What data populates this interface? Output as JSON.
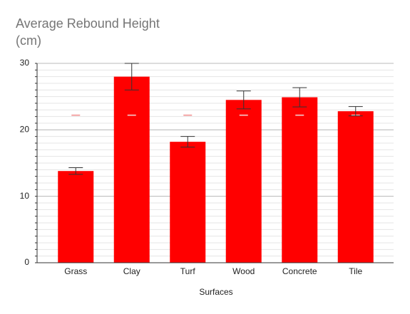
{
  "chart_data": {
    "type": "bar",
    "title": "Average Rebound Height",
    "title_unit": "(cm)",
    "x_label": "Surfaces",
    "categories": [
      "Grass",
      "Clay",
      "Turf",
      "Wood",
      "Concrete",
      "Tile"
    ],
    "values": [
      13.8,
      28.0,
      18.2,
      24.5,
      24.9,
      22.8
    ],
    "errors": [
      0.5,
      2.0,
      0.8,
      1.35,
      1.45,
      0.7
    ],
    "marker_values": [
      22.2,
      22.2,
      22.2,
      22.2,
      22.2,
      22.2
    ],
    "marker_color": "#f4a7a7",
    "color": "#ff0000",
    "ylim": [
      0,
      30
    ],
    "yticks": [
      0,
      10,
      20,
      30
    ],
    "grid": true,
    "minor_grid_step": 1
  }
}
